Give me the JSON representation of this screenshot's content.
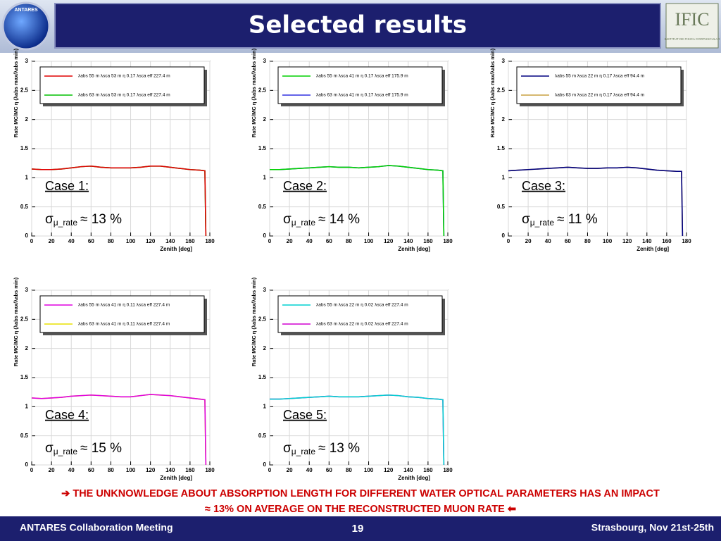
{
  "header": {
    "title": "Selected results",
    "left_logo": "ANTARES",
    "right_logo": "IFIC",
    "right_logo_sub": "INSTITUT DE FISICA CORPUSCULAR"
  },
  "chart_data": [
    {
      "type": "line",
      "x_label": "Zenith [deg]",
      "y_label": "Rate MC/MC η (λabs max/λabs min)",
      "x": [
        0,
        10,
        20,
        30,
        40,
        50,
        60,
        70,
        80,
        90,
        100,
        110,
        120,
        130,
        140,
        150,
        160,
        170,
        175,
        176
      ],
      "series": [
        {
          "name": "λabs 55 m λsca 53 m η 0.17 λsca eff 227.4 m",
          "color": "#e00000",
          "values": [
            1.15,
            1.14,
            1.14,
            1.15,
            1.17,
            1.19,
            1.2,
            1.18,
            1.17,
            1.17,
            1.17,
            1.18,
            1.2,
            1.2,
            1.18,
            1.16,
            1.14,
            1.13,
            1.12,
            0
          ]
        },
        {
          "name": "λabs 63 m λsca 53 m η 0.17 λsca eff 227.4 m",
          "color": "#00c000",
          "values": [
            1.15,
            1.14,
            1.14,
            1.15,
            1.17,
            1.19,
            1.2,
            1.18,
            1.17,
            1.17,
            1.17,
            1.18,
            1.2,
            1.2,
            1.18,
            1.16,
            1.14,
            1.13,
            1.12,
            0
          ]
        }
      ],
      "xlim": [
        0,
        180
      ],
      "xticks": [
        0,
        20,
        40,
        60,
        80,
        100,
        120,
        140,
        160,
        180
      ],
      "ylim": [
        0,
        3
      ],
      "yticks": [
        0,
        0.5,
        1,
        1.5,
        2,
        2.5,
        3
      ],
      "grid": true,
      "annotation": "Case 1:",
      "sigma": "σ",
      "sigma_sub": "μ_rate",
      "sigma_value": "≈ 13 %"
    },
    {
      "type": "line",
      "x_label": "Zenith [deg]",
      "y_label": "Rate MC/MC η (λabs max/λabs min)",
      "x": [
        0,
        10,
        20,
        30,
        40,
        50,
        60,
        70,
        80,
        90,
        100,
        110,
        120,
        130,
        140,
        150,
        160,
        170,
        175,
        176
      ],
      "series": [
        {
          "name": "λabs 55 m λsca 41 m η 0.17 λsca eff 175.9 m",
          "color": "#00d000",
          "values": [
            1.14,
            1.14,
            1.15,
            1.16,
            1.17,
            1.18,
            1.19,
            1.18,
            1.18,
            1.17,
            1.18,
            1.19,
            1.21,
            1.2,
            1.18,
            1.16,
            1.14,
            1.13,
            1.12,
            0
          ]
        },
        {
          "name": "λabs 63 m λsca 41 m η 0.17 λsca eff 175.9 m",
          "color": "#3030e0",
          "values": [
            1.14,
            1.14,
            1.15,
            1.16,
            1.17,
            1.18,
            1.19,
            1.18,
            1.18,
            1.17,
            1.18,
            1.19,
            1.21,
            1.2,
            1.18,
            1.16,
            1.14,
            1.13,
            1.12,
            0
          ]
        }
      ],
      "xlim": [
        0,
        180
      ],
      "xticks": [
        0,
        20,
        40,
        60,
        80,
        100,
        120,
        140,
        160,
        180
      ],
      "ylim": [
        0,
        3
      ],
      "yticks": [
        0,
        0.5,
        1,
        1.5,
        2,
        2.5,
        3
      ],
      "grid": true,
      "annotation": "Case 2:",
      "sigma": "σ",
      "sigma_sub": "μ_rate",
      "sigma_value": "≈ 14 %"
    },
    {
      "type": "line",
      "x_label": "Zenith [deg]",
      "y_label": "Rate MC/MC η (λabs max/λabs min)",
      "x": [
        0,
        10,
        20,
        30,
        40,
        50,
        60,
        70,
        80,
        90,
        100,
        110,
        120,
        130,
        140,
        150,
        160,
        170,
        175,
        176
      ],
      "series": [
        {
          "name": "λabs 55 m λsca 22 m η 0.17 λsca eff 94.4 m",
          "color": "#000080",
          "values": [
            1.12,
            1.13,
            1.14,
            1.15,
            1.16,
            1.17,
            1.18,
            1.17,
            1.16,
            1.16,
            1.17,
            1.17,
            1.18,
            1.17,
            1.15,
            1.13,
            1.12,
            1.11,
            1.11,
            0
          ]
        },
        {
          "name": "λabs 63 m λsca 22 m η 0.17 λsca eff 94.4 m",
          "color": "#c8a040",
          "values": [
            1.12,
            1.13,
            1.14,
            1.15,
            1.16,
            1.17,
            1.18,
            1.17,
            1.16,
            1.16,
            1.17,
            1.17,
            1.18,
            1.17,
            1.15,
            1.13,
            1.12,
            1.11,
            1.11,
            0
          ]
        }
      ],
      "xlim": [
        0,
        180
      ],
      "xticks": [
        0,
        20,
        40,
        60,
        80,
        100,
        120,
        140,
        160,
        180
      ],
      "ylim": [
        0,
        3
      ],
      "yticks": [
        0,
        0.5,
        1,
        1.5,
        2,
        2.5,
        3
      ],
      "grid": true,
      "annotation": "Case 3:",
      "sigma": "σ",
      "sigma_sub": "μ_rate",
      "sigma_value": "≈ 11 %"
    },
    {
      "type": "line",
      "x_label": "Zenith [deg]",
      "y_label": "Rate MC/MC η (λabs max/λabs min)",
      "x": [
        0,
        10,
        20,
        30,
        40,
        50,
        60,
        70,
        80,
        90,
        100,
        110,
        120,
        130,
        140,
        150,
        160,
        170,
        175,
        176
      ],
      "series": [
        {
          "name": "λabs 55 m λsca 41 m η 0.11 λsca eff 227.4 m",
          "color": "#e000e0",
          "values": [
            1.15,
            1.14,
            1.15,
            1.16,
            1.18,
            1.19,
            1.2,
            1.19,
            1.18,
            1.17,
            1.17,
            1.19,
            1.21,
            1.2,
            1.19,
            1.17,
            1.15,
            1.13,
            1.12,
            0
          ]
        },
        {
          "name": "λabs 63 m λsca 41 m η 0.11 λsca eff 227.4 m",
          "color": "#e8e000",
          "values": [
            1.15,
            1.14,
            1.15,
            1.16,
            1.18,
            1.19,
            1.2,
            1.19,
            1.18,
            1.17,
            1.17,
            1.19,
            1.21,
            1.2,
            1.19,
            1.17,
            1.15,
            1.13,
            1.12,
            0
          ]
        }
      ],
      "xlim": [
        0,
        180
      ],
      "xticks": [
        0,
        20,
        40,
        60,
        80,
        100,
        120,
        140,
        160,
        180
      ],
      "ylim": [
        0,
        3
      ],
      "yticks": [
        0,
        0.5,
        1,
        1.5,
        2,
        2.5,
        3
      ],
      "grid": true,
      "annotation": "Case 4:",
      "sigma": "σ",
      "sigma_sub": "μ_rate",
      "sigma_value": "≈ 15 %"
    },
    {
      "type": "line",
      "x_label": "Zenith [deg]",
      "y_label": "Rate MC/MC η (λabs max/λabs min)",
      "x": [
        0,
        10,
        20,
        30,
        40,
        50,
        60,
        70,
        80,
        90,
        100,
        110,
        120,
        130,
        140,
        150,
        160,
        170,
        175,
        176
      ],
      "series": [
        {
          "name": "λabs 55 m λsca 22 m η 0.02 λsca eff 227.4 m",
          "color": "#00d0d0",
          "values": [
            1.13,
            1.13,
            1.14,
            1.15,
            1.16,
            1.17,
            1.18,
            1.17,
            1.17,
            1.17,
            1.18,
            1.19,
            1.2,
            1.19,
            1.17,
            1.16,
            1.14,
            1.13,
            1.12,
            0
          ]
        },
        {
          "name": "λabs 63 m λsca 22 m η 0.02 λsca eff 227.4 m",
          "color": "#d000d0",
          "values": [
            1.13,
            1.13,
            1.14,
            1.15,
            1.16,
            1.17,
            1.18,
            1.17,
            1.17,
            1.17,
            1.18,
            1.19,
            1.2,
            1.19,
            1.17,
            1.16,
            1.14,
            1.13,
            1.12,
            0
          ]
        }
      ],
      "xlim": [
        0,
        180
      ],
      "xticks": [
        0,
        20,
        40,
        60,
        80,
        100,
        120,
        140,
        160,
        180
      ],
      "ylim": [
        0,
        3
      ],
      "yticks": [
        0,
        0.5,
        1,
        1.5,
        2,
        2.5,
        3
      ],
      "grid": true,
      "annotation": "Case 5:",
      "sigma": "σ",
      "sigma_sub": "μ_rate",
      "sigma_value": "≈ 13 %"
    }
  ],
  "conclusion": [
    "➔ THE UNKNOWLEDGE ABOUT ABSORPTION LENGTH FOR DIFFERENT WATER OPTICAL PARAMETERS HAS AN IMPACT",
    "≈ 13% ON AVERAGE ON THE RECONSTRUCTED MUON RATE ⬅"
  ],
  "footer": {
    "left": "ANTARES Collaboration Meeting",
    "page": "19",
    "right": "Strasbourg, Nov 21st-25th"
  }
}
